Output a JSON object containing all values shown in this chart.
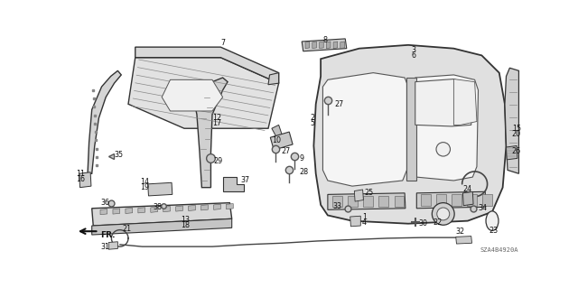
{
  "background_color": "#ffffff",
  "diagram_code": "SZA4B4920A",
  "line_color": "#333333",
  "fill_light": "#e8e8e8",
  "fill_medium": "#d0d0d0",
  "fill_dark": "#b8b8b8"
}
